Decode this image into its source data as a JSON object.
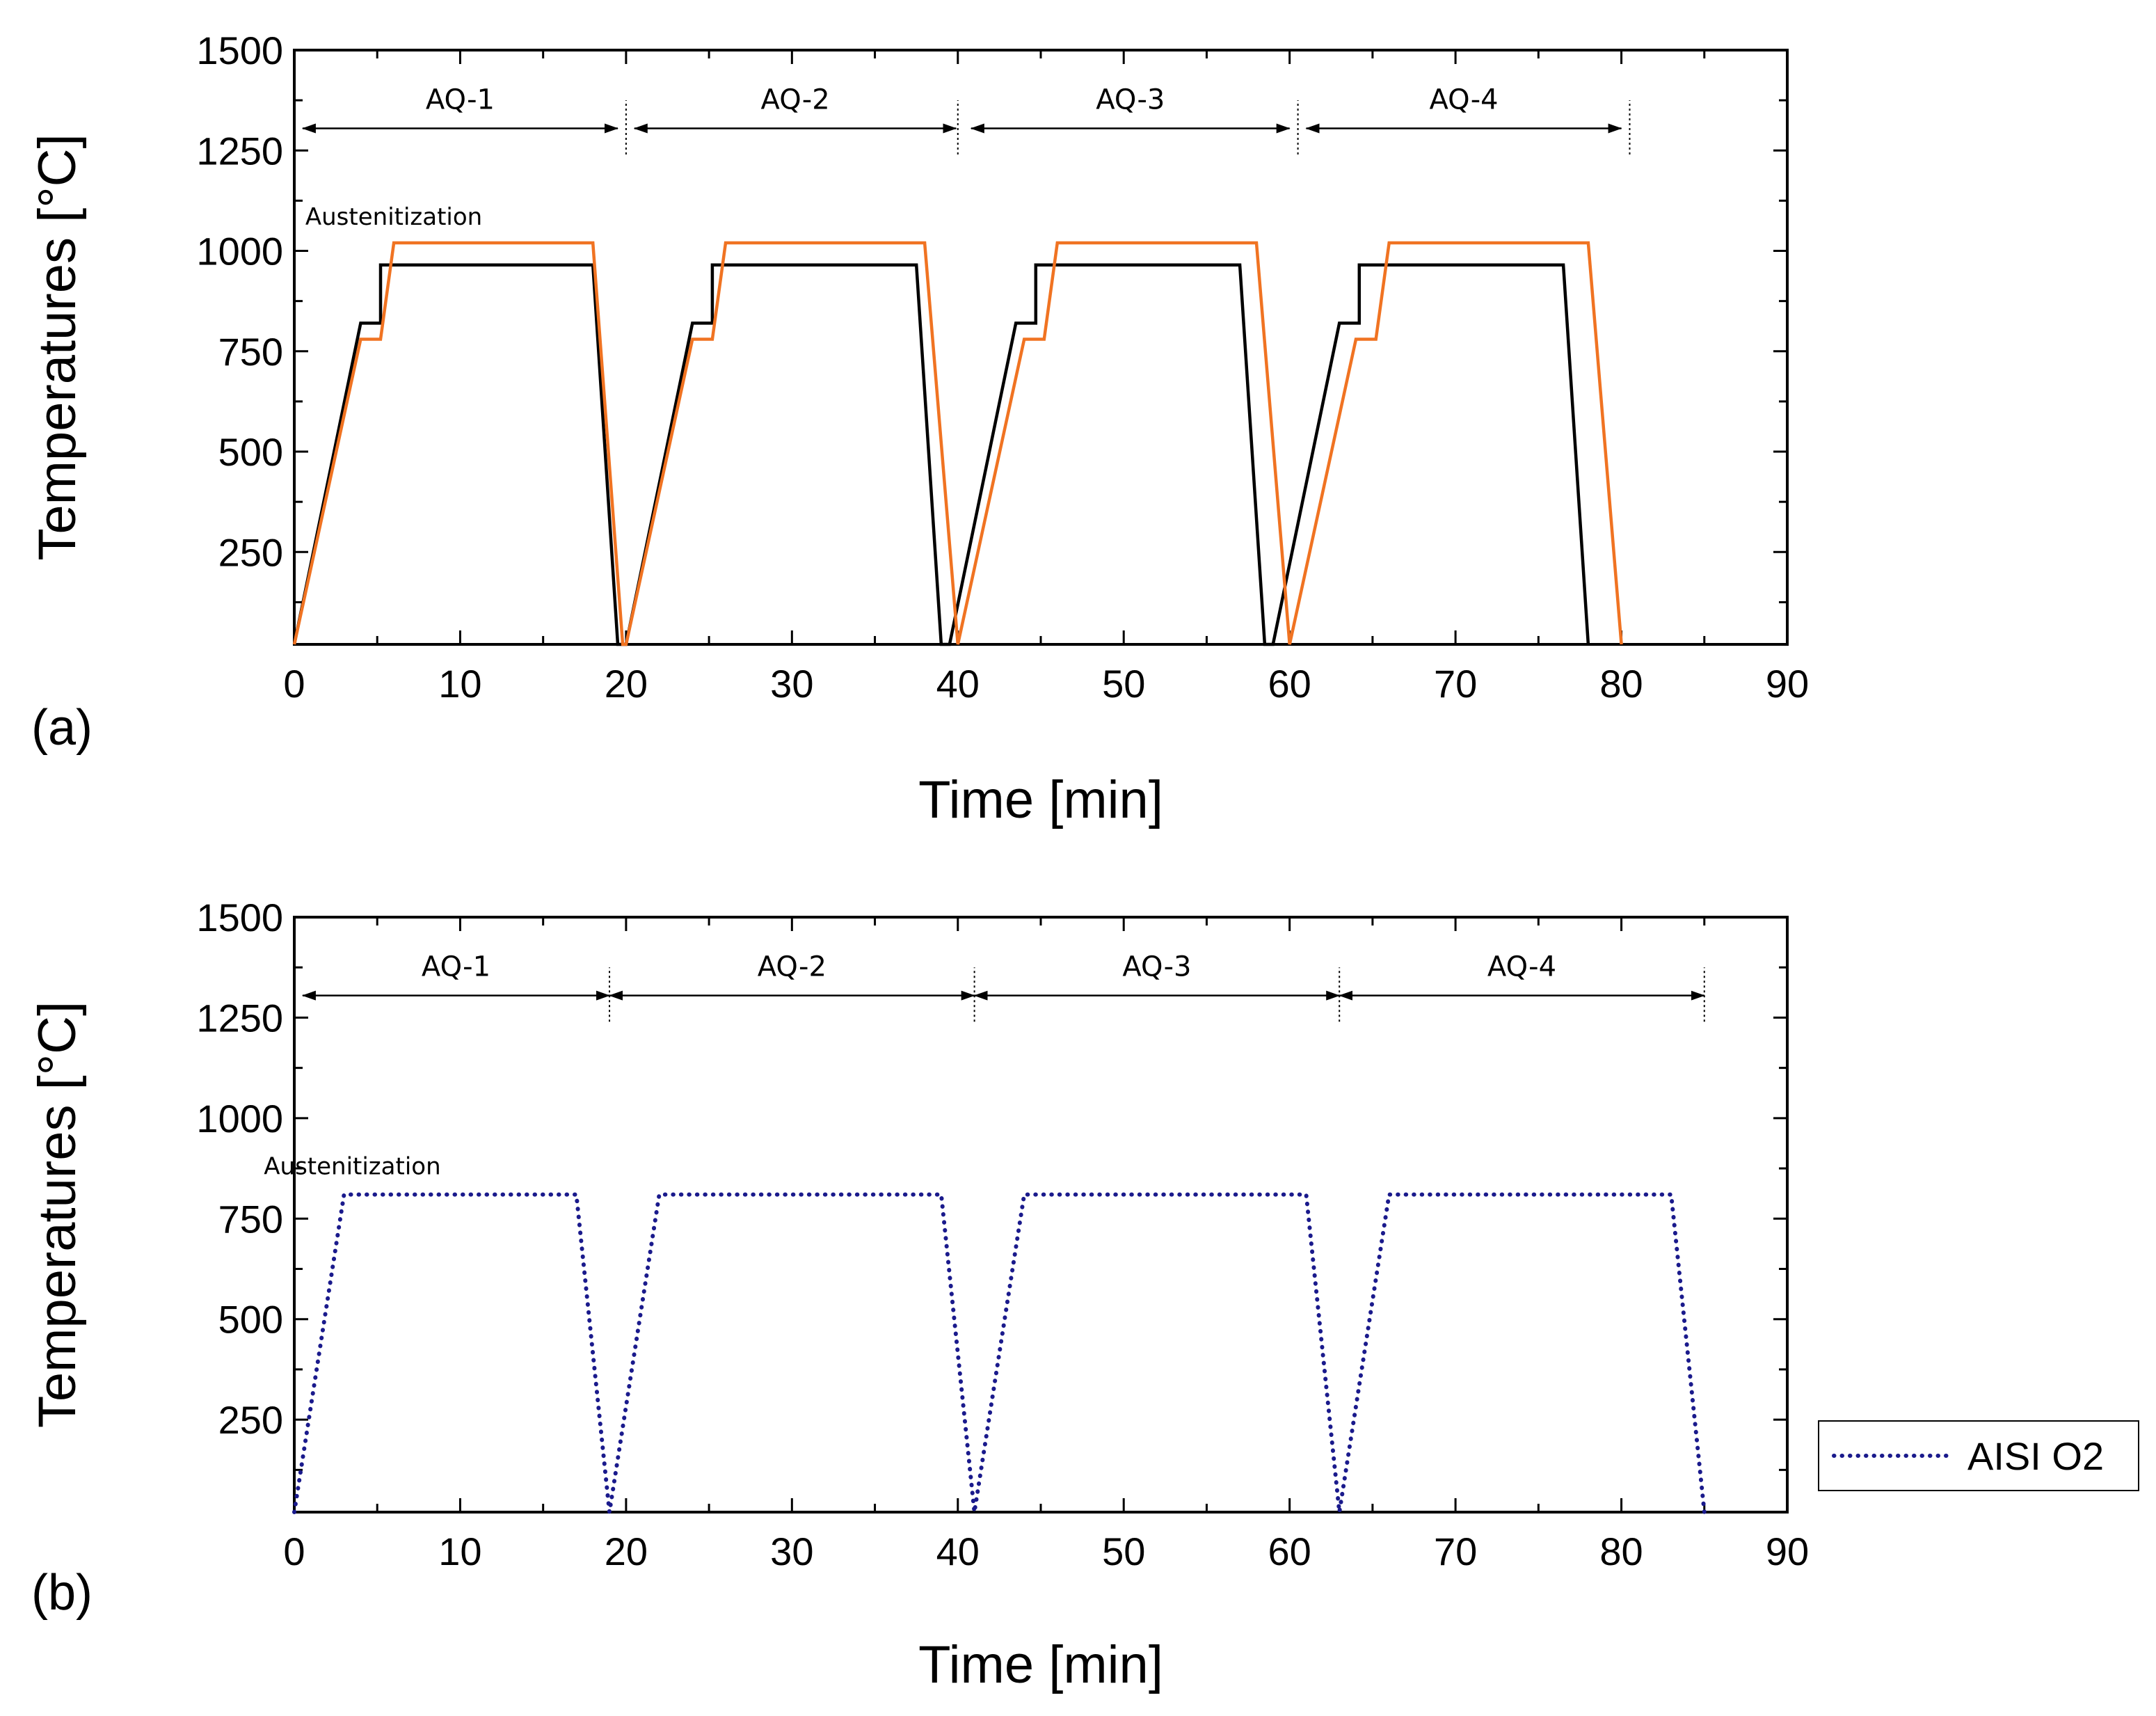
{
  "chart_data": [
    {
      "type": "line",
      "panel_label": "(a)",
      "xlabel": "Time [min]",
      "ylabel": "Temperatures [°C]",
      "xlim": [
        0,
        90
      ],
      "ylim": [
        20,
        1500
      ],
      "xticks": [
        0,
        10,
        20,
        30,
        40,
        50,
        60,
        70,
        80,
        90
      ],
      "yticks": [
        250,
        500,
        750,
        1000,
        1250,
        1500
      ],
      "annotation": {
        "text": "Austenitization",
        "x": 6,
        "y": 1065
      },
      "phases": [
        {
          "label": "AQ-1",
          "start": 0.5,
          "end": 19.5
        },
        {
          "label": "AQ-2",
          "start": 20.5,
          "end": 39.9
        },
        {
          "label": "AQ-3",
          "start": 40.8,
          "end": 60.0
        },
        {
          "label": "AQ-4",
          "start": 61.0,
          "end": 80.0
        }
      ],
      "phase_arrow_y": 1305,
      "phase_dividers": [
        20.0,
        40.0,
        60.5,
        80.5
      ],
      "series": [
        {
          "name": "black",
          "color": "#000000",
          "style": "solid",
          "x": [
            0,
            4,
            4,
            5.2,
            5.2,
            18,
            19.5,
            20,
            24,
            24,
            25.2,
            25.2,
            37.5,
            39,
            39.5,
            43.5,
            43.5,
            44.7,
            44.7,
            57,
            58.5,
            59,
            63,
            63,
            64.2,
            64.2,
            76.5,
            78
          ],
          "y": [
            20,
            820,
            820,
            820,
            965,
            965,
            20,
            20,
            820,
            820,
            820,
            965,
            965,
            20,
            20,
            820,
            820,
            820,
            965,
            965,
            20,
            20,
            820,
            820,
            820,
            965,
            965,
            20
          ]
        },
        {
          "name": "orange",
          "color": "#f07322",
          "style": "solid",
          "x": [
            0,
            4,
            4,
            5.2,
            5.2,
            6,
            18,
            19.8,
            20,
            24,
            24,
            25.2,
            25.2,
            26,
            38,
            40,
            40,
            44,
            44,
            45.2,
            45.2,
            46,
            58,
            60,
            60,
            64,
            64,
            65.2,
            65.2,
            66,
            78,
            80
          ],
          "y": [
            20,
            780,
            780,
            780,
            780,
            1020,
            1020,
            20,
            20,
            780,
            780,
            780,
            780,
            1020,
            1020,
            20,
            20,
            780,
            780,
            780,
            780,
            1020,
            1020,
            20,
            20,
            780,
            780,
            780,
            780,
            1020,
            1020,
            20
          ]
        }
      ]
    },
    {
      "type": "line",
      "panel_label": "(b)",
      "xlabel": "Time [min]",
      "ylabel": "Temperatures [°C]",
      "xlim": [
        0,
        90
      ],
      "ylim": [
        20,
        1500
      ],
      "xticks": [
        0,
        10,
        20,
        30,
        40,
        50,
        60,
        70,
        80,
        90
      ],
      "yticks": [
        250,
        500,
        750,
        1000,
        1250,
        1500
      ],
      "annotation": {
        "text": "Austenitization",
        "x": 3.5,
        "y": 860
      },
      "phases": [
        {
          "label": "AQ-1",
          "start": 0.5,
          "end": 19.0
        },
        {
          "label": "AQ-2",
          "start": 19.0,
          "end": 41.0
        },
        {
          "label": "AQ-3",
          "start": 41.0,
          "end": 63.0
        },
        {
          "label": "AQ-4",
          "start": 63.0,
          "end": 85.0
        }
      ],
      "phase_arrow_y": 1305,
      "phase_dividers": [
        19.0,
        41.0,
        63.0,
        85.0
      ],
      "legend": {
        "label": "AISI O2",
        "position": "right"
      },
      "series": [
        {
          "name": "AISI O2",
          "color": "#1a1a8c",
          "style": "dotted",
          "x": [
            0,
            3,
            17,
            19,
            22,
            39,
            41,
            44,
            61,
            63,
            66,
            83,
            85
          ],
          "y": [
            20,
            810,
            810,
            20,
            810,
            810,
            20,
            810,
            810,
            20,
            810,
            810,
            20
          ]
        }
      ]
    }
  ]
}
